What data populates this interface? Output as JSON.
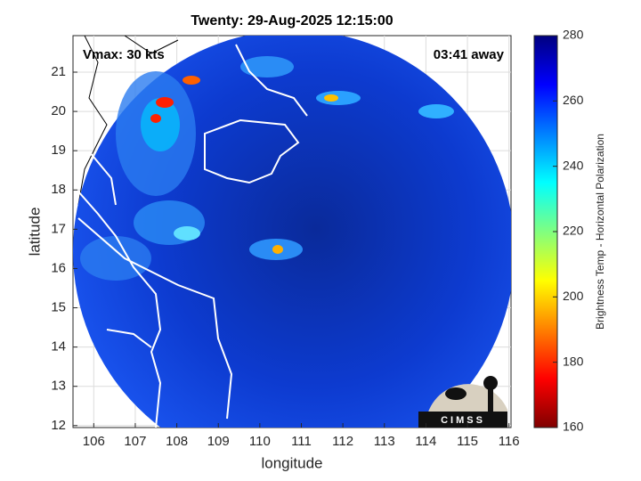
{
  "chart_data": {
    "type": "map",
    "title": "Twenty: 29-Aug-2025 12:15:00",
    "x_label": "longitude",
    "y_label": "latitude",
    "annotations": [
      "Vmax: 30 kts",
      "03:41 away"
    ],
    "logo": "CIMSS",
    "xlim": [
      105.5,
      116.05
    ],
    "ylim": [
      11.95,
      21.93
    ],
    "xticks": [
      106,
      107,
      108,
      109,
      110,
      111,
      112,
      113,
      114,
      115,
      116
    ],
    "yticks": [
      12,
      13,
      14,
      15,
      16,
      17,
      18,
      19,
      20,
      21
    ],
    "grid": true,
    "colorbar": {
      "label": "Brightness Temp - Horizontal Polarization",
      "clim": [
        160,
        280
      ],
      "ticks": [
        160,
        180,
        200,
        220,
        240,
        260,
        280
      ],
      "colormap": [
        "#7f0000",
        "#ff0000",
        "#ff8000",
        "#ffff00",
        "#80ff80",
        "#00ffff",
        "#0080ff",
        "#0000ff",
        "#00007f"
      ]
    }
  }
}
